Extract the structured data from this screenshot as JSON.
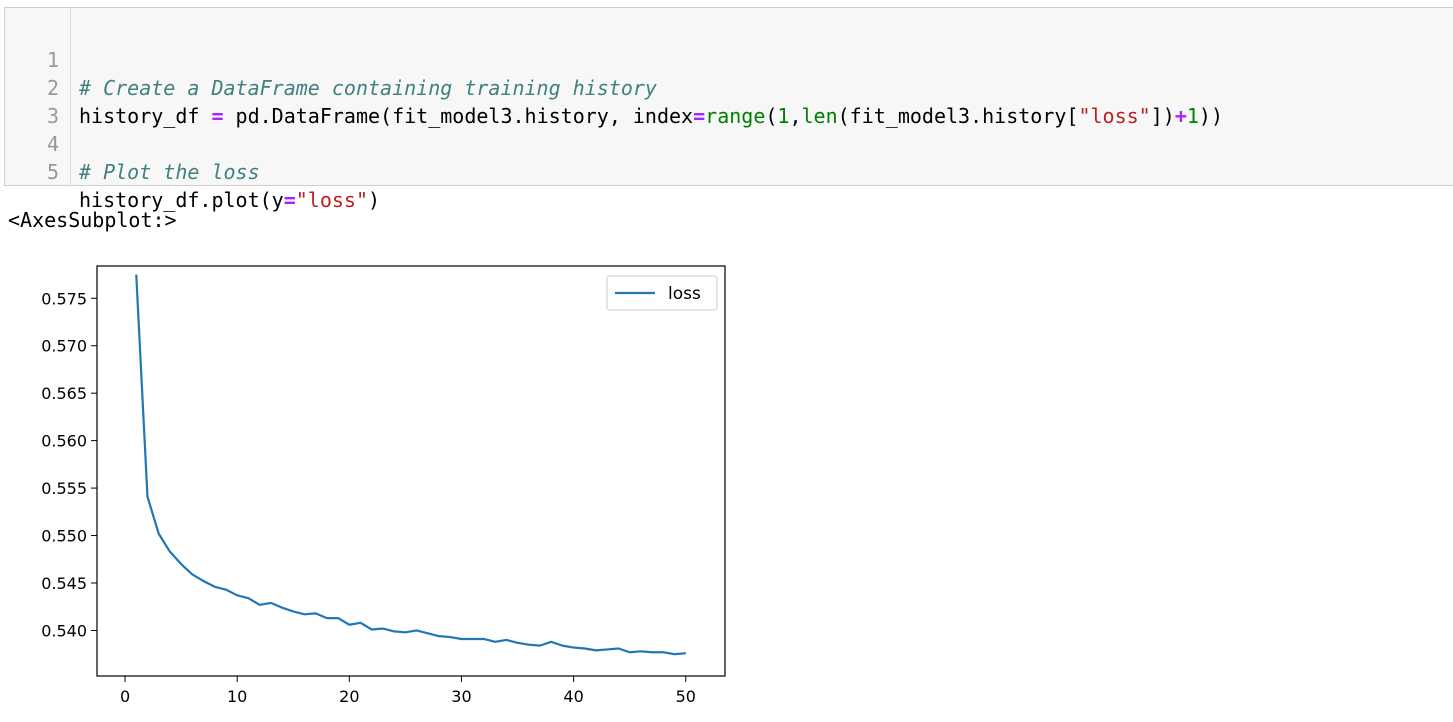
{
  "code_cell": {
    "lines": [
      {
        "num": "1"
      },
      {
        "num": "2"
      },
      {
        "num": "3"
      },
      {
        "num": "4"
      },
      {
        "num": "5"
      }
    ],
    "line1": {
      "comment": "# Create a DataFrame containing training history"
    },
    "line2": {
      "a": "history_df ",
      "eq": "=",
      "b": " pd.DataFrame(fit_model3.history, index",
      "eq2": "=",
      "range": "range",
      "p1": "(",
      "n1": "1",
      "comma": ",",
      "len": "len",
      "c": "(fit_model3.history[",
      "str": "\"loss\"",
      "d": "])",
      "plus": "+",
      "n2": "1",
      "e": "))"
    },
    "line4": {
      "comment": "# Plot the loss"
    },
    "line5": {
      "a": "history_df.plot(y",
      "eq": "=",
      "str": "\"loss\"",
      "b": ")"
    }
  },
  "output_text": "<AxesSubplot:>",
  "chart_data": {
    "type": "line",
    "legend": [
      "loss"
    ],
    "legend_position": "top-right",
    "xlim": [
      -2.5,
      53.5
    ],
    "ylim": [
      0.5352,
      0.5784
    ],
    "xticks": [
      0,
      10,
      20,
      30,
      40,
      50
    ],
    "yticks": [
      0.54,
      0.545,
      0.55,
      0.555,
      0.56,
      0.565,
      0.57,
      0.575
    ],
    "ytick_labels": [
      "0.540",
      "0.545",
      "0.550",
      "0.555",
      "0.560",
      "0.565",
      "0.570",
      "0.575"
    ],
    "grid": false,
    "series": [
      {
        "name": "loss",
        "color": "#1f77b4",
        "x": [
          1,
          2,
          3,
          4,
          5,
          6,
          7,
          8,
          9,
          10,
          11,
          12,
          13,
          14,
          15,
          16,
          17,
          18,
          19,
          20,
          21,
          22,
          23,
          24,
          25,
          26,
          27,
          28,
          29,
          30,
          31,
          32,
          33,
          34,
          35,
          36,
          37,
          38,
          39,
          40,
          41,
          42,
          43,
          44,
          45,
          46,
          47,
          48,
          49,
          50
        ],
        "y": [
          0.5775,
          0.5541,
          0.5502,
          0.5483,
          0.547,
          0.5459,
          0.5452,
          0.5446,
          0.5443,
          0.5437,
          0.5434,
          0.5427,
          0.5429,
          0.5424,
          0.542,
          0.5417,
          0.5418,
          0.5413,
          0.5413,
          0.5406,
          0.5408,
          0.5401,
          0.5402,
          0.5399,
          0.5398,
          0.54,
          0.5397,
          0.5394,
          0.5393,
          0.5391,
          0.5391,
          0.5391,
          0.5388,
          0.539,
          0.5387,
          0.5385,
          0.5384,
          0.5388,
          0.5384,
          0.5382,
          0.5381,
          0.5379,
          0.538,
          0.5381,
          0.5377,
          0.5378,
          0.5377,
          0.5377,
          0.5375,
          0.5376
        ]
      }
    ]
  }
}
